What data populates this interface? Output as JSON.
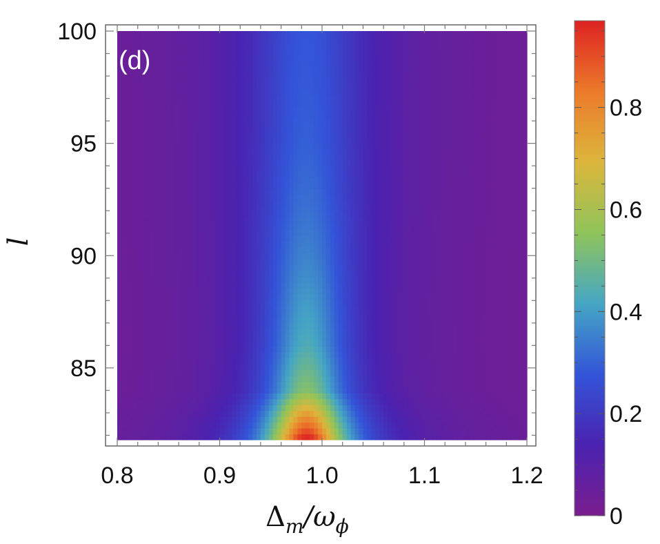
{
  "chart_data": {
    "type": "heatmap",
    "panel_label": "(d)",
    "xlabel": "Δm/ωϕ",
    "xlabel_parts": {
      "main": "Δ",
      "main_sub": "m",
      "den": "ω",
      "den_sub": "ϕ"
    },
    "ylabel": "l",
    "xlim": [
      0.8,
      1.2
    ],
    "ylim": [
      81.8,
      100
    ],
    "x_ticks": [
      {
        "value": 0.8,
        "label": "0.8"
      },
      {
        "value": 0.9,
        "label": "0.9"
      },
      {
        "value": 1.0,
        "label": "1.0"
      },
      {
        "value": 1.1,
        "label": "1.1"
      },
      {
        "value": 1.2,
        "label": "1.2"
      }
    ],
    "y_ticks": [
      {
        "value": 85,
        "label": "85"
      },
      {
        "value": 90,
        "label": "90"
      },
      {
        "value": 95,
        "label": "95"
      },
      {
        "value": 100,
        "label": "100"
      }
    ],
    "colorbar": {
      "range": [
        0,
        0.97
      ],
      "ticks": [
        {
          "value": 0,
          "label": "0"
        },
        {
          "value": 0.2,
          "label": "0.2"
        },
        {
          "value": 0.4,
          "label": "0.4"
        },
        {
          "value": 0.6,
          "label": "0.6"
        },
        {
          "value": 0.8,
          "label": "0.8"
        }
      ],
      "colormap": [
        "#7a1e8e",
        "#4a22b0",
        "#3355d8",
        "#45a6c4",
        "#8fc45a",
        "#dcb63c",
        "#ec7a2a",
        "#dd2222"
      ]
    },
    "peak": {
      "x": 0.985,
      "y": 81.8,
      "value": 0.97
    },
    "profile": [
      {
        "l": 81.8,
        "value": 0.97,
        "width": 0.035
      },
      {
        "l": 84,
        "value": 0.52,
        "width": 0.038
      },
      {
        "l": 86,
        "value": 0.42,
        "width": 0.041
      },
      {
        "l": 88,
        "value": 0.38,
        "width": 0.044
      },
      {
        "l": 90,
        "value": 0.34,
        "width": 0.048
      },
      {
        "l": 92,
        "value": 0.31,
        "width": 0.052
      },
      {
        "l": 95,
        "value": 0.28,
        "width": 0.056
      },
      {
        "l": 100,
        "value": 0.26,
        "width": 0.06
      }
    ],
    "grid": false
  }
}
